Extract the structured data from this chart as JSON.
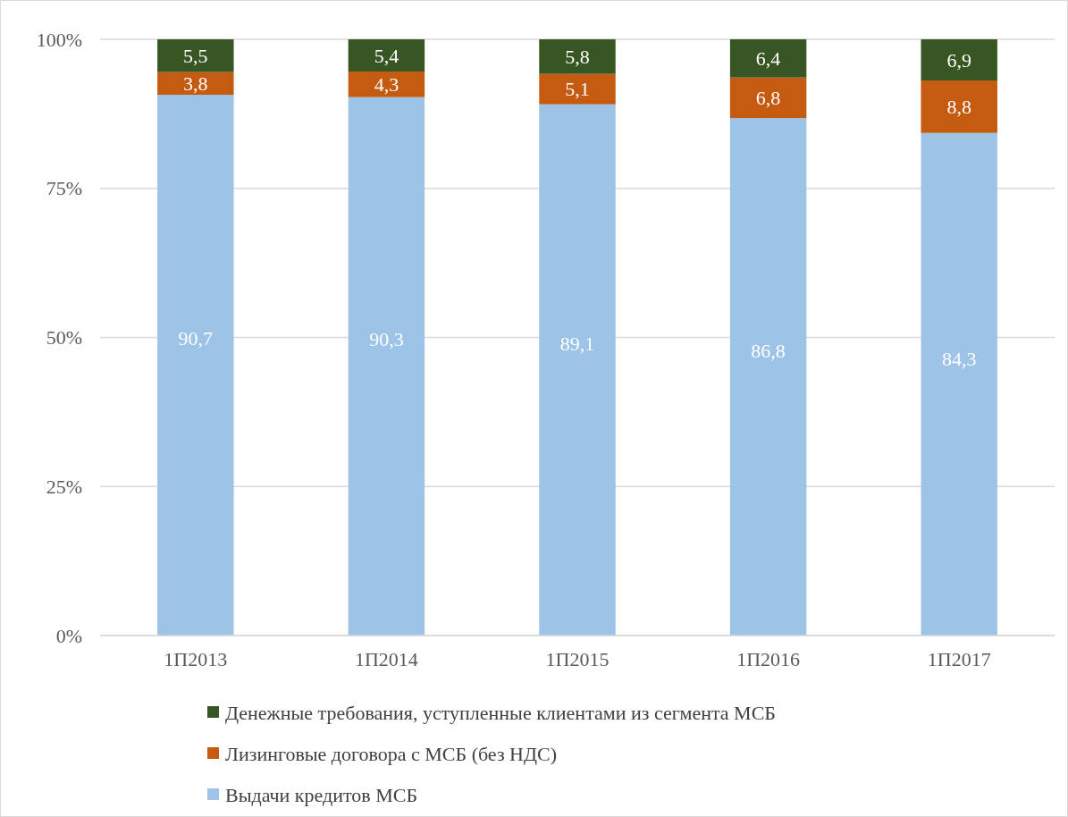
{
  "chart_data": {
    "type": "bar",
    "stacked": true,
    "categories": [
      "1П2013",
      "1П2014",
      "1П2015",
      "1П2016",
      "1П2017"
    ],
    "series": [
      {
        "name": "Выдачи кредитов МСБ",
        "color": "#9dc3e6",
        "values": [
          90.7,
          90.3,
          89.1,
          86.8,
          84.3
        ],
        "value_labels": [
          "90,7",
          "90,3",
          "89,1",
          "86,8",
          "84,3"
        ]
      },
      {
        "name": "Лизинговые договора с МСБ (без НДС)",
        "color": "#c55a11",
        "values": [
          3.8,
          4.3,
          5.1,
          6.8,
          8.8
        ],
        "value_labels": [
          "3,8",
          "4,3",
          "5,1",
          "6,8",
          "8,8"
        ]
      },
      {
        "name": "Денежные требования, уступленные клиентами из сегмента МСБ",
        "color": "#375623",
        "values": [
          5.5,
          5.4,
          5.8,
          6.4,
          6.9
        ],
        "value_labels": [
          "5,5",
          "5,4",
          "5,8",
          "6,4",
          "6,9"
        ]
      }
    ],
    "ylim": [
      0,
      100
    ],
    "yticks": [
      {
        "value": 0,
        "label": "0%"
      },
      {
        "value": 25,
        "label": "25%"
      },
      {
        "value": 50,
        "label": "50%"
      },
      {
        "value": 75,
        "label": "75%"
      },
      {
        "value": 100,
        "label": "100%"
      }
    ],
    "grid": "y",
    "legend": "bottom"
  }
}
